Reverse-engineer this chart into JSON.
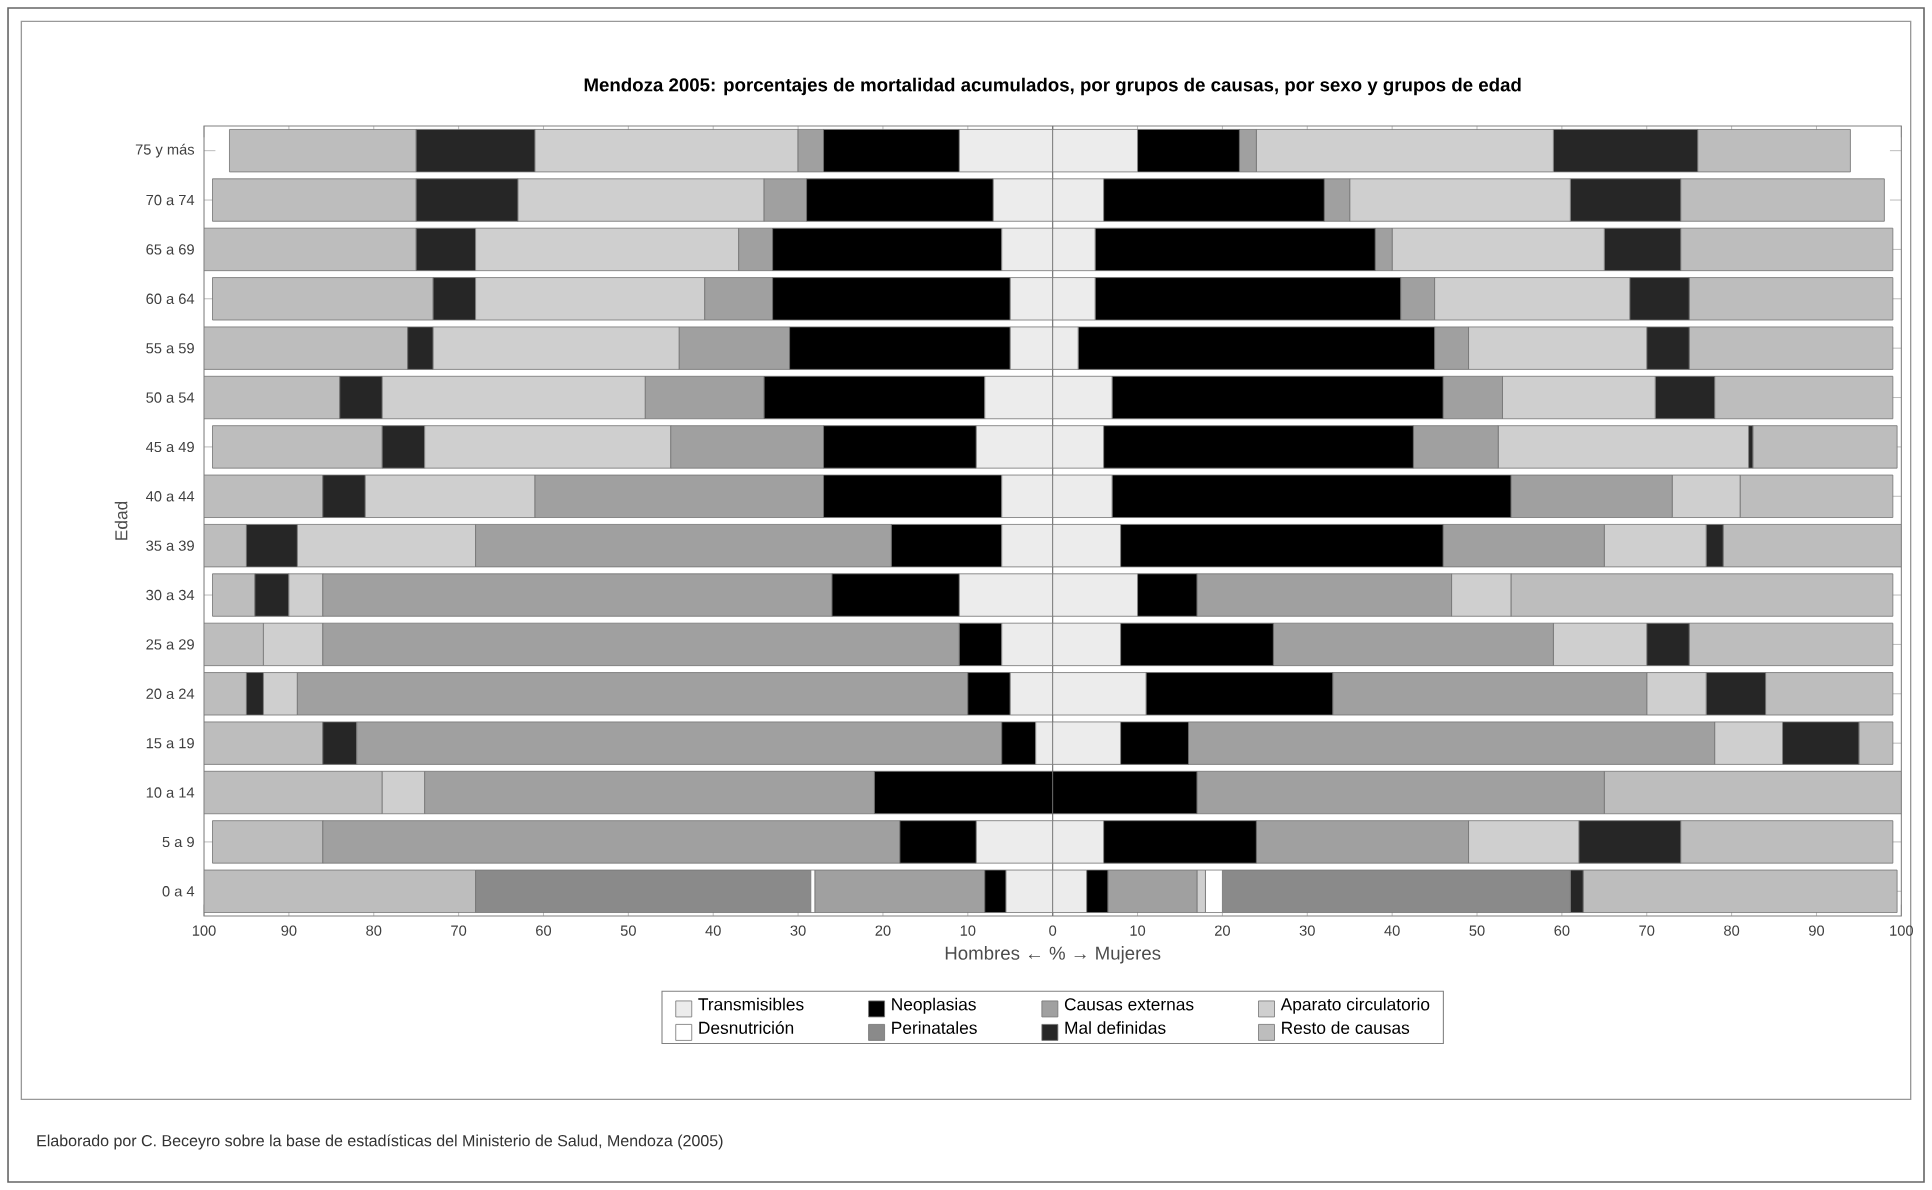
{
  "chart_data": {
    "type": "bar",
    "orientation": "horizontal",
    "stacked": true,
    "title": "Mendoza 2005: porcentajes de mortalidad acumulados, por grupos de causas, por sexo y grupos de edad",
    "xlabel": "Hombres ← % → Mujeres",
    "ylabel": "Edad",
    "annotations": [
      "Elaborado por C. Beceyro sobre la base de estadísticas del Ministerio de Salud, Mendoza (2005)"
    ],
    "categories": [
      "75 y más",
      "70 a 74",
      "65 a 69",
      "60 a 64",
      "55 a 59",
      "50 a 54",
      "45 a 49",
      "40 a 44",
      "35 a 39",
      "30 a 34",
      "25 a 29",
      "20 a 24",
      "15 a 19",
      "10 a 14",
      "5 a 9",
      "0 a 4"
    ],
    "xlim": [
      -100,
      100
    ],
    "xticks": [
      {
        "value": -100,
        "label": "100"
      },
      {
        "value": -90,
        "label": "90"
      },
      {
        "value": -80,
        "label": "80"
      },
      {
        "value": -70,
        "label": "70"
      },
      {
        "value": -60,
        "label": "60"
      },
      {
        "value": -50,
        "label": "50"
      },
      {
        "value": -40,
        "label": "40"
      },
      {
        "value": -30,
        "label": "30"
      },
      {
        "value": -20,
        "label": "20"
      },
      {
        "value": -10,
        "label": "10"
      },
      0,
      10,
      20,
      30,
      40,
      50,
      60,
      70,
      80,
      90,
      100
    ],
    "legend": "bottom",
    "series": [
      {
        "name": "Transmisibles",
        "color": "#ececec",
        "values": [
          -11,
          -7,
          -6,
          -5,
          -5,
          -8,
          -9,
          -6,
          -6,
          -11,
          -6,
          -5,
          -2,
          0,
          -9,
          -5.5
        ]
      },
      {
        "name": "Neoplasias",
        "color": "#000000",
        "values": [
          -16,
          -22,
          -27,
          -28,
          -26,
          -26,
          -18,
          -21,
          -13,
          -15,
          -5,
          -5,
          -4,
          -21,
          -9,
          -2.5
        ]
      },
      {
        "name": "Causas externas",
        "color": "#a0a0a0",
        "values": [
          -3,
          -5,
          -4,
          -8,
          -13,
          -14,
          -18,
          -34,
          -49,
          -60,
          -75,
          -79,
          -76,
          -53,
          -68,
          -20
        ]
      },
      {
        "name": "Aparato circulatorio",
        "color": "#cfcfcf",
        "values": [
          -31,
          -29,
          -31,
          -27,
          -29,
          -31,
          -29,
          -20,
          -21,
          -4,
          -7,
          -4,
          0,
          -5,
          0,
          0
        ]
      },
      {
        "name": "Desnutrición",
        "color": "#ffffff",
        "values": [
          0,
          0,
          0,
          0,
          0,
          0,
          0,
          0,
          0,
          0,
          0,
          0,
          0,
          0,
          0,
          -0.5
        ]
      },
      {
        "name": "Perinatales",
        "color": "#8a8a8a",
        "values": [
          0,
          0,
          0,
          0,
          0,
          0,
          0,
          0,
          0,
          0,
          0,
          0,
          0,
          0,
          0,
          -39.5
        ]
      },
      {
        "name": "Mal definidas",
        "color": "#262626",
        "values": [
          -14,
          -12,
          -7,
          -5,
          -3,
          -5,
          -5,
          -5,
          -6,
          -4,
          0,
          -2,
          -4,
          0,
          0,
          0
        ]
      },
      {
        "name": "Resto de causas",
        "color": "#bdbdbd",
        "values": [
          -22,
          -24,
          -25,
          -26,
          -24,
          -16,
          -20,
          -14,
          -5,
          -5,
          -7,
          -5,
          -14,
          -21,
          -13,
          -32
        ]
      },
      {
        "color": "#ececec",
        "values": [
          10,
          6,
          5,
          5,
          3,
          7,
          6,
          7,
          8,
          10,
          8,
          11,
          8,
          0,
          6,
          4
        ]
      },
      {
        "color": "#000000",
        "values": [
          12,
          26,
          33,
          36,
          42,
          39,
          36.5,
          47,
          38,
          7,
          18,
          22,
          8,
          17,
          18,
          2.5
        ]
      },
      {
        "color": "#a0a0a0",
        "values": [
          2,
          3,
          2,
          4,
          4,
          7,
          10,
          19,
          19,
          30,
          33,
          37,
          62,
          48,
          25,
          10.5
        ]
      },
      {
        "color": "#cfcfcf",
        "values": [
          35,
          26,
          25,
          23,
          21,
          18,
          29.5,
          8,
          12,
          7,
          11,
          7,
          8,
          0,
          13,
          1
        ]
      },
      {
        "color": "#ffffff",
        "values": [
          0,
          0,
          0,
          0,
          0,
          0,
          0,
          0,
          0,
          0,
          0,
          0,
          0,
          0,
          0,
          2
        ]
      },
      {
        "color": "#8a8a8a",
        "values": [
          0,
          0,
          0,
          0,
          0,
          0,
          0,
          0,
          0,
          0,
          0,
          0,
          0,
          0,
          0,
          41
        ]
      },
      {
        "color": "#262626",
        "values": [
          17,
          13,
          9,
          7,
          5,
          7,
          0.5,
          0,
          2,
          0,
          5,
          7,
          9,
          0,
          12,
          1.5
        ]
      },
      {
        "color": "#bdbdbd",
        "values": [
          18,
          24,
          25,
          24,
          24,
          21,
          17,
          18,
          21,
          45,
          24,
          15,
          4,
          35,
          25,
          37
        ]
      }
    ]
  }
}
